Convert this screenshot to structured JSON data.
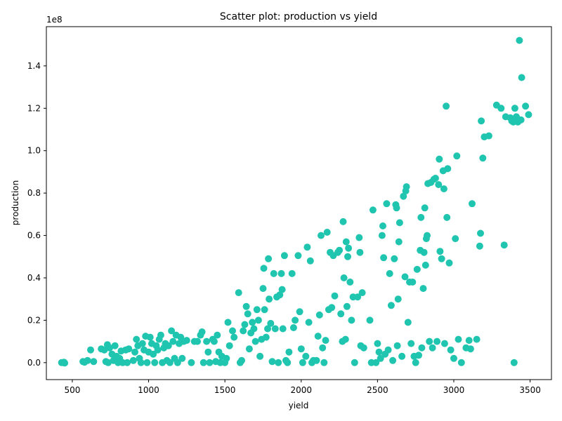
{
  "chart_data": {
    "type": "scatter",
    "title": "Scatter plot: production vs yield",
    "xlabel": "yield",
    "ylabel": "production",
    "y_offset_text": "1e8",
    "xlim": [
      330,
      3640
    ],
    "ylim": [
      -0.08,
      1.585
    ],
    "y_scale_note": "values in units of 1e8",
    "xticks": [
      500,
      1000,
      1500,
      2000,
      2500,
      3000,
      3500
    ],
    "yticks": [
      0.0,
      0.2,
      0.4,
      0.6,
      0.8,
      1.0,
      1.2,
      1.4
    ],
    "ytick_labels": [
      "0.0",
      "0.2",
      "0.4",
      "0.6",
      "0.8",
      "1.0",
      "1.2",
      "1.4"
    ],
    "marker_color": "#20c5b0",
    "grid": false,
    "series": [
      {
        "points": [
          [
            430,
            0.0
          ],
          [
            440,
            0.0
          ],
          [
            450,
            -0.002
          ],
          [
            445,
            0.002
          ],
          [
            570,
            0.005
          ],
          [
            580,
            0.002
          ],
          [
            600,
            0.01
          ],
          [
            620,
            0.06
          ],
          [
            640,
            0.005
          ],
          [
            690,
            0.065
          ],
          [
            710,
            0.06
          ],
          [
            720,
            0.005
          ],
          [
            730,
            0.085
          ],
          [
            735,
            0.0
          ],
          [
            745,
            0.07
          ],
          [
            760,
            0.04
          ],
          [
            770,
            0.01
          ],
          [
            780,
            0.08
          ],
          [
            790,
            0.03
          ],
          [
            800,
            0.0
          ],
          [
            810,
            0.02
          ],
          [
            820,
            0.055
          ],
          [
            830,
            0.0
          ],
          [
            850,
            0.06
          ],
          [
            860,
            0.0
          ],
          [
            870,
            0.065
          ],
          [
            900,
            0.01
          ],
          [
            910,
            0.05
          ],
          [
            920,
            0.11
          ],
          [
            930,
            0.08
          ],
          [
            940,
            0.02
          ],
          [
            950,
            0.0
          ],
          [
            960,
            0.09
          ],
          [
            970,
            0.06
          ],
          [
            980,
            0.125
          ],
          [
            990,
            0.0
          ],
          [
            1000,
            0.05
          ],
          [
            1010,
            0.12
          ],
          [
            1020,
            0.09
          ],
          [
            1030,
            0.04
          ],
          [
            1040,
            0.0
          ],
          [
            1050,
            0.08
          ],
          [
            1060,
            0.06
          ],
          [
            1070,
            0.11
          ],
          [
            1080,
            0.13
          ],
          [
            1090,
            0.0
          ],
          [
            1100,
            0.07
          ],
          [
            1110,
            0.09
          ],
          [
            1120,
            0.01
          ],
          [
            1130,
            0.08
          ],
          [
            1140,
            0.0
          ],
          [
            1150,
            0.15
          ],
          [
            1160,
            0.1
          ],
          [
            1170,
            0.02
          ],
          [
            1180,
            0.13
          ],
          [
            1190,
            0.0
          ],
          [
            1200,
            0.09
          ],
          [
            1210,
            0.12
          ],
          [
            1220,
            0.02
          ],
          [
            1230,
            0.1
          ],
          [
            1250,
            0.105
          ],
          [
            1280,
            0.0
          ],
          [
            1300,
            0.1
          ],
          [
            1320,
            0.1
          ],
          [
            1340,
            0.13
          ],
          [
            1350,
            0.145
          ],
          [
            1360,
            0.0
          ],
          [
            1380,
            0.1
          ],
          [
            1390,
            0.05
          ],
          [
            1400,
            0.0
          ],
          [
            1420,
            0.11
          ],
          [
            1430,
            0.1
          ],
          [
            1440,
            0.005
          ],
          [
            1450,
            0.13
          ],
          [
            1460,
            0.05
          ],
          [
            1470,
            0.0
          ],
          [
            1480,
            0.03
          ],
          [
            1500,
            0.0
          ],
          [
            1510,
            0.02
          ],
          [
            1520,
            0.19
          ],
          [
            1530,
            0.08
          ],
          [
            1550,
            0.15
          ],
          [
            1560,
            0.12
          ],
          [
            1590,
            0.33
          ],
          [
            1600,
            0.0
          ],
          [
            1610,
            0.01
          ],
          [
            1620,
            0.15
          ],
          [
            1630,
            0.18
          ],
          [
            1640,
            0.265
          ],
          [
            1650,
            0.23
          ],
          [
            1660,
            0.065
          ],
          [
            1670,
            0.14
          ],
          [
            1680,
            0.19
          ],
          [
            1690,
            0.16
          ],
          [
            1700,
            0.1
          ],
          [
            1710,
            0.25
          ],
          [
            1720,
            0.2
          ],
          [
            1730,
            0.03
          ],
          [
            1740,
            0.11
          ],
          [
            1750,
            0.35
          ],
          [
            1755,
            0.445
          ],
          [
            1760,
            0.25
          ],
          [
            1770,
            0.12
          ],
          [
            1780,
            0.16
          ],
          [
            1785,
            0.49
          ],
          [
            1790,
            0.3
          ],
          [
            1800,
            0.185
          ],
          [
            1810,
            0.005
          ],
          [
            1820,
            0.42
          ],
          [
            1830,
            0.16
          ],
          [
            1840,
            0.31
          ],
          [
            1850,
            0.0
          ],
          [
            1860,
            0.32
          ],
          [
            1870,
            0.42
          ],
          [
            1875,
            0.345
          ],
          [
            1880,
            0.16
          ],
          [
            1890,
            0.505
          ],
          [
            1900,
            0.01
          ],
          [
            1910,
            0.0
          ],
          [
            1920,
            0.05
          ],
          [
            1940,
            0.42
          ],
          [
            1950,
            0.165
          ],
          [
            1960,
            0.2
          ],
          [
            1980,
            0.505
          ],
          [
            1990,
            0.24
          ],
          [
            2000,
            0.065
          ],
          [
            2010,
            0.0
          ],
          [
            2030,
            0.03
          ],
          [
            2040,
            0.545
          ],
          [
            2050,
            0.19
          ],
          [
            2060,
            0.48
          ],
          [
            2070,
            0.0
          ],
          [
            2080,
            0.01
          ],
          [
            2100,
            0.01
          ],
          [
            2110,
            0.125
          ],
          [
            2120,
            0.225
          ],
          [
            2130,
            0.6
          ],
          [
            2140,
            0.07
          ],
          [
            2150,
            0.0
          ],
          [
            2160,
            0.105
          ],
          [
            2170,
            0.615
          ],
          [
            2180,
            0.25
          ],
          [
            2190,
            0.52
          ],
          [
            2200,
            0.26
          ],
          [
            2210,
            0.505
          ],
          [
            2220,
            0.315
          ],
          [
            2240,
            0.52
          ],
          [
            2250,
            0.53
          ],
          [
            2260,
            0.23
          ],
          [
            2270,
            0.1
          ],
          [
            2275,
            0.665
          ],
          [
            2280,
            0.4
          ],
          [
            2290,
            0.11
          ],
          [
            2295,
            0.57
          ],
          [
            2300,
            0.265
          ],
          [
            2305,
            0.5
          ],
          [
            2310,
            0.54
          ],
          [
            2320,
            0.38
          ],
          [
            2330,
            0.2
          ],
          [
            2340,
            0.31
          ],
          [
            2350,
            0.0
          ],
          [
            2370,
            0.31
          ],
          [
            2380,
            0.59
          ],
          [
            2385,
            0.52
          ],
          [
            2390,
            0.08
          ],
          [
            2400,
            0.33
          ],
          [
            2410,
            0.07
          ],
          [
            2450,
            0.2
          ],
          [
            2460,
            0.0
          ],
          [
            2470,
            0.72
          ],
          [
            2490,
            0.0
          ],
          [
            2500,
            0.09
          ],
          [
            2510,
            0.05
          ],
          [
            2520,
            0.02
          ],
          [
            2530,
            0.6
          ],
          [
            2535,
            0.645
          ],
          [
            2540,
            0.495
          ],
          [
            2550,
            0.04
          ],
          [
            2560,
            0.75
          ],
          [
            2570,
            0.06
          ],
          [
            2580,
            0.42
          ],
          [
            2590,
            0.27
          ],
          [
            2600,
            0.01
          ],
          [
            2610,
            0.49
          ],
          [
            2620,
            0.745
          ],
          [
            2625,
            0.73
          ],
          [
            2630,
            0.08
          ],
          [
            2635,
            0.3
          ],
          [
            2640,
            0.57
          ],
          [
            2645,
            0.66
          ],
          [
            2660,
            0.03
          ],
          [
            2670,
            0.785
          ],
          [
            2680,
            0.405
          ],
          [
            2685,
            0.81
          ],
          [
            2690,
            0.83
          ],
          [
            2700,
            0.19
          ],
          [
            2710,
            0.38
          ],
          [
            2720,
            0.09
          ],
          [
            2730,
            0.38
          ],
          [
            2740,
            0.03
          ],
          [
            2750,
            0.0
          ],
          [
            2760,
            0.44
          ],
          [
            2770,
            0.035
          ],
          [
            2780,
            0.53
          ],
          [
            2785,
            0.685
          ],
          [
            2790,
            0.07
          ],
          [
            2800,
            0.35
          ],
          [
            2805,
            0.52
          ],
          [
            2810,
            0.73
          ],
          [
            2815,
            0.46
          ],
          [
            2820,
            0.585
          ],
          [
            2825,
            0.6
          ],
          [
            2830,
            0.845
          ],
          [
            2840,
            0.1
          ],
          [
            2850,
            0.85
          ],
          [
            2860,
            0.07
          ],
          [
            2870,
            0.865
          ],
          [
            2880,
            0.87
          ],
          [
            2890,
            0.1
          ],
          [
            2900,
            0.84
          ],
          [
            2905,
            0.96
          ],
          [
            2910,
            0.525
          ],
          [
            2920,
            0.49
          ],
          [
            2930,
            0.905
          ],
          [
            2935,
            0.82
          ],
          [
            2940,
            0.09
          ],
          [
            2950,
            1.21
          ],
          [
            2955,
            0.685
          ],
          [
            2960,
            0.915
          ],
          [
            2970,
            0.47
          ],
          [
            2980,
            0.06
          ],
          [
            3000,
            0.02
          ],
          [
            3010,
            0.585
          ],
          [
            3020,
            0.975
          ],
          [
            3030,
            0.11
          ],
          [
            3050,
            0.0
          ],
          [
            3080,
            0.07
          ],
          [
            3100,
            0.105
          ],
          [
            3110,
            0.065
          ],
          [
            3120,
            0.75
          ],
          [
            3150,
            0.11
          ],
          [
            3170,
            0.55
          ],
          [
            3175,
            0.61
          ],
          [
            3180,
            1.14
          ],
          [
            3190,
            0.965
          ],
          [
            3200,
            1.065
          ],
          [
            3230,
            1.07
          ],
          [
            3280,
            1.215
          ],
          [
            3310,
            1.2
          ],
          [
            3330,
            0.555
          ],
          [
            3340,
            1.16
          ],
          [
            3370,
            1.155
          ],
          [
            3380,
            1.14
          ],
          [
            3390,
            1.135
          ],
          [
            3395,
            0.0
          ],
          [
            3400,
            1.2
          ],
          [
            3410,
            1.16
          ],
          [
            3420,
            1.135
          ],
          [
            3430,
            1.52
          ],
          [
            3440,
            1.145
          ],
          [
            3445,
            1.345
          ],
          [
            3470,
            1.21
          ],
          [
            3490,
            1.17
          ]
        ]
      }
    ]
  }
}
